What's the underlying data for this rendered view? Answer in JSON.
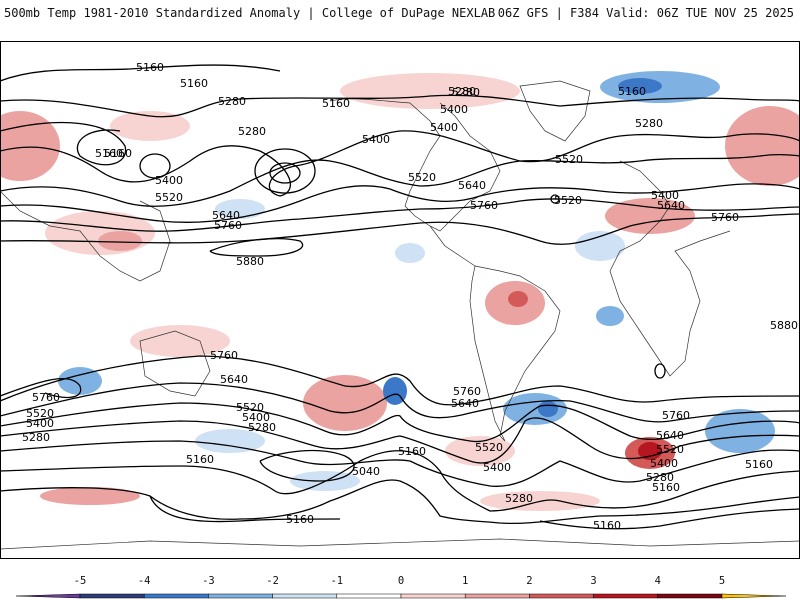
{
  "header": {
    "title": "500mb Temp 1981-2010 Standardized Anomaly | College of DuPage NEXLAB",
    "run_info": "06Z GFS | F384 Valid: 06Z TUE NOV 25 2025"
  },
  "colorbar": {
    "ticks": [
      "-5",
      "-4",
      "-3",
      "-2",
      "-1",
      "0",
      "1",
      "2",
      "3",
      "4",
      "5"
    ],
    "colors": [
      "#6a3d9a",
      "#2c3e75",
      "#3b78c8",
      "#7fb2e3",
      "#cfe1f4",
      "#ffffff",
      "#f7d4d2",
      "#eaa3a0",
      "#d45a5a",
      "#b5161f",
      "#7a0712",
      "#ffc20e"
    ]
  },
  "contour_labels": {
    "l1": "5160",
    "l2": "5160",
    "l3": "5160",
    "l4": "5280",
    "l5": "5280",
    "l6": "5160",
    "l7": "5280",
    "l8": "5400",
    "l9": "5400",
    "l10": "5520",
    "l11": "5400",
    "l12": "5520",
    "l13": "5640",
    "l14": "5760",
    "l15": "5880",
    "l16": "5640",
    "l17": "5760",
    "l18": "5520",
    "l19": "5160",
    "l20": "5280",
    "l21": "5400",
    "l22": "5640",
    "l23": "5760",
    "l24": "5880",
    "l25": "5760",
    "l26": "5640",
    "l27": "5760",
    "l28": "5520",
    "l29": "5400",
    "l30": "5280",
    "l31": "5520",
    "l32": "5400",
    "l33": "5280",
    "l34": "5160",
    "l35": "5040",
    "l36": "5160",
    "l37": "5160",
    "l38": "5760",
    "l39": "5640",
    "l40": "5520",
    "l41": "5400",
    "l42": "5280",
    "l43": "5160",
    "l44": "5160",
    "l45": "5760",
    "l46": "5640",
    "l47": "5520",
    "l48": "5400",
    "l49": "5280",
    "l50": "5160",
    "l51": "5520",
    "l52": "5400",
    "l53": "5280",
    "l54": "5160"
  }
}
